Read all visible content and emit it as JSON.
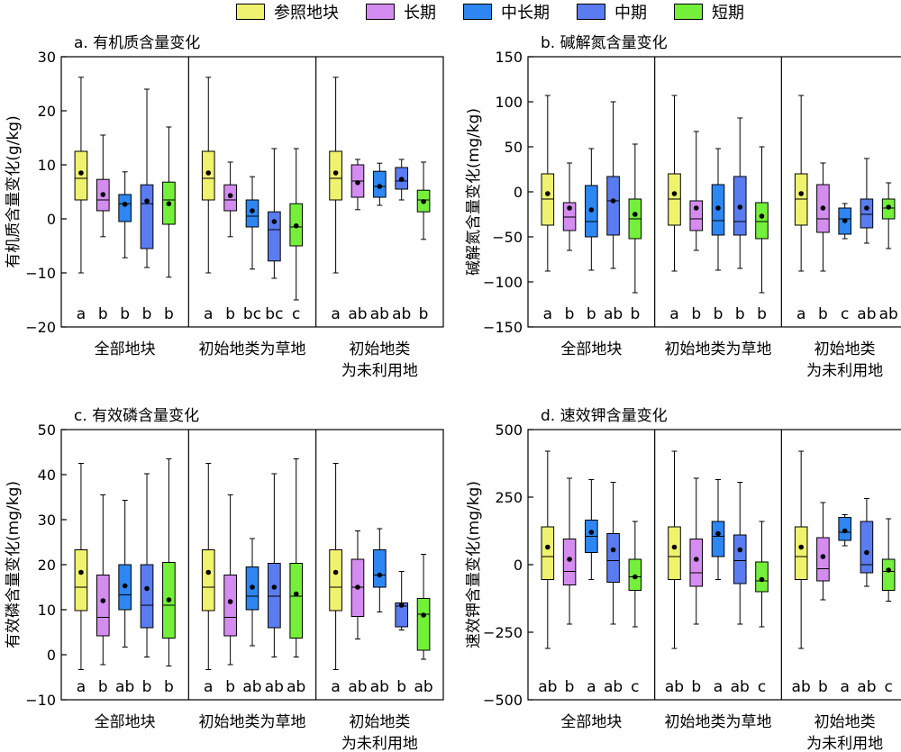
{
  "colors": {
    "参照地块": "#eef26e",
    "长期": "#d48cf0",
    "中长期": "#2e86f2",
    "中期": "#5a7cf0",
    "短期": "#74f03a",
    "mean_dot": "#000000"
  },
  "legend": [
    "参照地块",
    "长期",
    "中长期",
    "中期",
    "短期"
  ],
  "groups": [
    "全部地块",
    "初始地类为草地",
    "初始地类\n为未利用地"
  ],
  "chart_data": [
    {
      "type": "box",
      "title": "a. 有机质含量变化",
      "ylabel": "有机质含量变化(g/kg)",
      "ylim": [
        -20,
        30
      ],
      "yticks": [
        -20,
        -10,
        0,
        10,
        20,
        30
      ],
      "series_names": [
        "参照地块",
        "长期",
        "中长期",
        "中期",
        "短期"
      ],
      "groups": [
        {
          "name": "全部地块",
          "boxes": [
            {
              "min": -10,
              "q1": 3.5,
              "median": 7.5,
              "q3": 12.5,
              "max": 26.2,
              "mean": 8.5
            },
            {
              "min": -3.3,
              "q1": 1.5,
              "median": 3.5,
              "q3": 7.3,
              "max": 15.5,
              "mean": 4.5
            },
            {
              "min": -7.2,
              "q1": -0.5,
              "median": 2.8,
              "q3": 4.5,
              "max": 8.7,
              "mean": 2.7
            },
            {
              "min": -9,
              "q1": -5.5,
              "median": 2.8,
              "q3": 6.3,
              "max": 24,
              "mean": 3.3
            },
            {
              "min": -10.8,
              "q1": -1,
              "median": 3.5,
              "q3": 6.8,
              "max": 17,
              "mean": 2.8
            }
          ],
          "letters": [
            "a",
            "b",
            "b",
            "b",
            "b"
          ]
        },
        {
          "name": "初始地类为草地",
          "boxes": [
            {
              "min": -10,
              "q1": 3.5,
              "median": 7.5,
              "q3": 12.5,
              "max": 26.2,
              "mean": 8.5
            },
            {
              "min": -3.3,
              "q1": 1.5,
              "median": 3.5,
              "q3": 6.3,
              "max": 10.5,
              "mean": 4.3
            },
            {
              "min": -9.3,
              "q1": -1.5,
              "median": 0.5,
              "q3": 3.5,
              "max": 7.8,
              "mean": 1.5
            },
            {
              "min": -11,
              "q1": -7.8,
              "median": -2,
              "q3": 1.3,
              "max": 13,
              "mean": -0.5
            },
            {
              "min": -15,
              "q1": -5,
              "median": -1.5,
              "q3": 2.8,
              "max": 13,
              "mean": -1.3
            }
          ],
          "letters": [
            "a",
            "b",
            "bc",
            "bc",
            "c"
          ]
        },
        {
          "name": "初始地类\n为未利用地",
          "boxes": [
            {
              "min": -10,
              "q1": 3.5,
              "median": 7.5,
              "q3": 12.5,
              "max": 26.2,
              "mean": 8.5
            },
            {
              "min": 1.7,
              "q1": 4,
              "median": 7,
              "q3": 10,
              "max": 11,
              "mean": 6.7
            },
            {
              "min": 2.5,
              "q1": 4,
              "median": 6,
              "q3": 8.8,
              "max": 10.3,
              "mean": 6
            },
            {
              "min": 3.5,
              "q1": 5.5,
              "median": 7,
              "q3": 9.5,
              "max": 11,
              "mean": 7.3
            },
            {
              "min": -3.8,
              "q1": 1.3,
              "median": 3.5,
              "q3": 5.3,
              "max": 10.5,
              "mean": 3.2
            }
          ],
          "letters": [
            "a",
            "ab",
            "ab",
            "ab",
            "b"
          ]
        }
      ]
    },
    {
      "type": "box",
      "title": "b. 碱解氮含量变化",
      "ylabel": "碱解氮含量变化(mg/kg)",
      "ylim": [
        -150,
        150
      ],
      "yticks": [
        -150,
        -100,
        -50,
        0,
        50,
        100,
        150
      ],
      "series_names": [
        "参照地块",
        "长期",
        "中长期",
        "中期",
        "短期"
      ],
      "groups": [
        {
          "name": "全部地块",
          "boxes": [
            {
              "min": -88,
              "q1": -37,
              "median": -8,
              "q3": 20,
              "max": 107,
              "mean": -2
            },
            {
              "min": -65,
              "q1": -43,
              "median": -28,
              "q3": -12,
              "max": 32,
              "mean": -18
            },
            {
              "min": -87,
              "q1": -50,
              "median": -33,
              "q3": 7,
              "max": 48,
              "mean": -20
            },
            {
              "min": -85,
              "q1": -48,
              "median": -10,
              "q3": 17,
              "max": 100,
              "mean": -10
            },
            {
              "min": -112,
              "q1": -52,
              "median": -30,
              "q3": -8,
              "max": 53,
              "mean": -25
            }
          ],
          "letters": [
            "a",
            "b",
            "b",
            "ab",
            "b"
          ]
        },
        {
          "name": "初始地类为草地",
          "boxes": [
            {
              "min": -88,
              "q1": -37,
              "median": -8,
              "q3": 20,
              "max": 107,
              "mean": -2
            },
            {
              "min": -65,
              "q1": -43,
              "median": -30,
              "q3": -10,
              "max": 67,
              "mean": -18
            },
            {
              "min": -87,
              "q1": -48,
              "median": -32,
              "q3": 8,
              "max": 48,
              "mean": -18
            },
            {
              "min": -85,
              "q1": -48,
              "median": -33,
              "q3": 17,
              "max": 82,
              "mean": -17
            },
            {
              "min": -112,
              "q1": -52,
              "median": -33,
              "q3": -12,
              "max": 50,
              "mean": -27
            }
          ],
          "letters": [
            "a",
            "b",
            "b",
            "b",
            "b"
          ]
        },
        {
          "name": "初始地类\n为未利用地",
          "boxes": [
            {
              "min": -88,
              "q1": -37,
              "median": -8,
              "q3": 20,
              "max": 107,
              "mean": -2
            },
            {
              "min": -88,
              "q1": -45,
              "median": -30,
              "q3": 8,
              "max": 32,
              "mean": -18
            },
            {
              "min": -52,
              "q1": -47,
              "median": -30,
              "q3": -18,
              "max": -13,
              "mean": -32
            },
            {
              "min": -57,
              "q1": -40,
              "median": -25,
              "q3": -8,
              "max": 37,
              "mean": -18
            },
            {
              "min": -63,
              "q1": -30,
              "median": -18,
              "q3": -8,
              "max": 10,
              "mean": -17
            }
          ],
          "letters": [
            "a",
            "b",
            "c",
            "ab",
            "ab"
          ]
        }
      ]
    },
    {
      "type": "box",
      "title": "c. 有效磷含量变化",
      "ylabel": "有效磷含量变化(mg/kg)",
      "ylim": [
        -10,
        50
      ],
      "yticks": [
        -10,
        0,
        10,
        20,
        30,
        40,
        50
      ],
      "series_names": [
        "参照地块",
        "长期",
        "中长期",
        "中期",
        "短期"
      ],
      "groups": [
        {
          "name": "全部地块",
          "boxes": [
            {
              "min": -3.3,
              "q1": 9.8,
              "median": 15,
              "q3": 23.3,
              "max": 42.5,
              "mean": 18.3
            },
            {
              "min": -2.2,
              "q1": 4.2,
              "median": 8.3,
              "q3": 17.7,
              "max": 35.5,
              "mean": 12
            },
            {
              "min": 1.7,
              "q1": 10,
              "median": 13.3,
              "q3": 20,
              "max": 34.3,
              "mean": 15.3
            },
            {
              "min": -0.5,
              "q1": 6,
              "median": 11,
              "q3": 20,
              "max": 40.2,
              "mean": 14.7
            },
            {
              "min": -2.5,
              "q1": 3.7,
              "median": 11,
              "q3": 20.5,
              "max": 43.5,
              "mean": 12.2
            }
          ],
          "letters": [
            "a",
            "b",
            "ab",
            "b",
            "b"
          ]
        },
        {
          "name": "初始地类为草地",
          "boxes": [
            {
              "min": -3.3,
              "q1": 9.8,
              "median": 15,
              "q3": 23.3,
              "max": 42.5,
              "mean": 18.3
            },
            {
              "min": -2.2,
              "q1": 4.2,
              "median": 8.3,
              "q3": 17.7,
              "max": 35.5,
              "mean": 11.8
            },
            {
              "min": 2,
              "q1": 10,
              "median": 13,
              "q3": 19.5,
              "max": 25.8,
              "mean": 15
            },
            {
              "min": -0.5,
              "q1": 6,
              "median": 13,
              "q3": 20.3,
              "max": 40.2,
              "mean": 15
            },
            {
              "min": -0.5,
              "q1": 3.7,
              "median": 13,
              "q3": 20.3,
              "max": 43.5,
              "mean": 13.5
            }
          ],
          "letters": [
            "a",
            "b",
            "ab",
            "ab",
            "ab"
          ]
        },
        {
          "name": "初始地类\n为未利用地",
          "boxes": [
            {
              "min": -3.3,
              "q1": 9.8,
              "median": 15,
              "q3": 23.3,
              "max": 42.5,
              "mean": 18.3
            },
            {
              "min": 3.5,
              "q1": 8.5,
              "median": 15,
              "q3": 21.2,
              "max": 27.5,
              "mean": 15
            },
            {
              "min": 9.5,
              "q1": 15,
              "median": 17.7,
              "q3": 23.3,
              "max": 28,
              "mean": 17.7
            },
            {
              "min": 5.5,
              "q1": 6.2,
              "median": 10.8,
              "q3": 11.5,
              "max": 18.5,
              "mean": 11
            },
            {
              "min": -1,
              "q1": 1,
              "median": 9,
              "q3": 12.5,
              "max": 22.3,
              "mean": 8.8
            }
          ],
          "letters": [
            "a",
            "ab",
            "ab",
            "b",
            "ab"
          ]
        }
      ]
    },
    {
      "type": "box",
      "title": "d. 速效钾含量变化",
      "ylabel": "速效钾含量变化(mg/kg)",
      "ylim": [
        -500,
        500
      ],
      "yticks": [
        -500,
        -250,
        0,
        250,
        500
      ],
      "series_names": [
        "参照地块",
        "长期",
        "中长期",
        "中期",
        "短期"
      ],
      "groups": [
        {
          "name": "全部地块",
          "boxes": [
            {
              "min": -310,
              "q1": -55,
              "median": 30,
              "q3": 140,
              "max": 420,
              "mean": 65
            },
            {
              "min": -220,
              "q1": -75,
              "median": -25,
              "q3": 95,
              "max": 320,
              "mean": 20
            },
            {
              "min": -55,
              "q1": 45,
              "median": 105,
              "q3": 165,
              "max": 315,
              "mean": 120
            },
            {
              "min": -220,
              "q1": -65,
              "median": 15,
              "q3": 115,
              "max": 305,
              "mean": 55
            },
            {
              "min": -230,
              "q1": -95,
              "median": -45,
              "q3": 20,
              "max": 160,
              "mean": -45
            }
          ],
          "letters": [
            "ab",
            "b",
            "a",
            "ab",
            "c"
          ]
        },
        {
          "name": "初始地类为草地",
          "boxes": [
            {
              "min": -310,
              "q1": -55,
              "median": 30,
              "q3": 140,
              "max": 420,
              "mean": 65
            },
            {
              "min": -220,
              "q1": -80,
              "median": -30,
              "q3": 95,
              "max": 320,
              "mean": 20
            },
            {
              "min": -55,
              "q1": 30,
              "median": 105,
              "q3": 160,
              "max": 315,
              "mean": 115
            },
            {
              "min": -220,
              "q1": -70,
              "median": 15,
              "q3": 110,
              "max": 305,
              "mean": 55
            },
            {
              "min": -230,
              "q1": -100,
              "median": -60,
              "q3": 10,
              "max": 160,
              "mean": -55
            }
          ],
          "letters": [
            "ab",
            "b",
            "a",
            "ab",
            "c"
          ]
        },
        {
          "name": "初始地类\n为未利用地",
          "boxes": [
            {
              "min": -310,
              "q1": -55,
              "median": 30,
              "q3": 140,
              "max": 420,
              "mean": 65
            },
            {
              "min": -130,
              "q1": -60,
              "median": -15,
              "q3": 100,
              "max": 230,
              "mean": 30
            },
            {
              "min": 70,
              "q1": 90,
              "median": 120,
              "q3": 175,
              "max": 185,
              "mean": 125
            },
            {
              "min": -80,
              "q1": -30,
              "median": 0,
              "q3": 160,
              "max": 245,
              "mean": 45
            },
            {
              "min": -135,
              "q1": -95,
              "median": -25,
              "q3": 20,
              "max": 170,
              "mean": -20
            }
          ],
          "letters": [
            "ab",
            "b",
            "a",
            "ab",
            "c"
          ]
        }
      ]
    }
  ]
}
